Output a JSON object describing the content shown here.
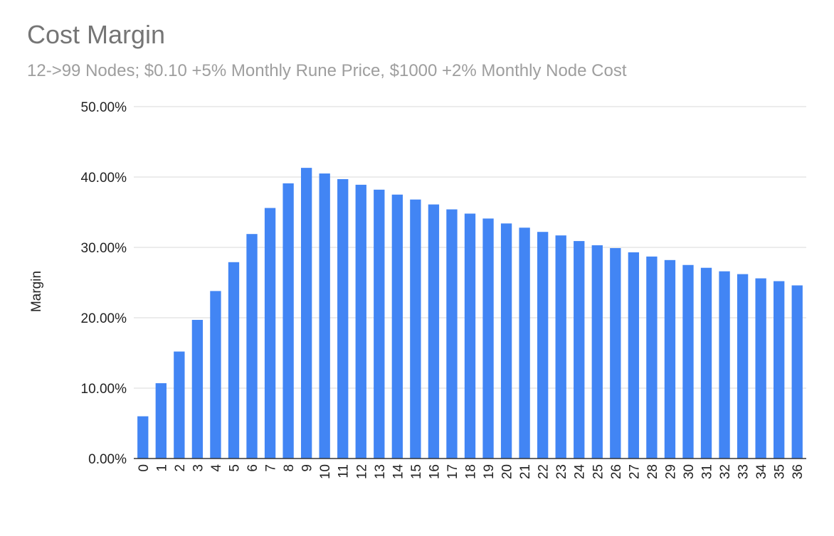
{
  "chart_data": {
    "type": "bar",
    "title": "Cost Margin",
    "subtitle": "12->99 Nodes; $0.10 +5% Monthly Rune Price, $1000 +2% Monthly Node Cost",
    "xlabel": "",
    "ylabel": "Margin",
    "ylim": [
      0,
      0.5
    ],
    "yticks": [
      "0.00%",
      "10.00%",
      "20.00%",
      "30.00%",
      "40.00%",
      "50.00%"
    ],
    "grid": true,
    "bar_color": "#4285f4",
    "categories": [
      "0",
      "1",
      "2",
      "3",
      "4",
      "5",
      "6",
      "7",
      "8",
      "9",
      "10",
      "11",
      "12",
      "13",
      "14",
      "15",
      "16",
      "17",
      "18",
      "19",
      "20",
      "21",
      "22",
      "23",
      "24",
      "25",
      "26",
      "27",
      "28",
      "29",
      "30",
      "31",
      "32",
      "33",
      "34",
      "35",
      "36"
    ],
    "values": [
      0.06,
      0.107,
      0.152,
      0.197,
      0.238,
      0.279,
      0.319,
      0.356,
      0.391,
      0.413,
      0.405,
      0.397,
      0.389,
      0.382,
      0.375,
      0.368,
      0.361,
      0.354,
      0.348,
      0.341,
      0.334,
      0.328,
      0.322,
      0.317,
      0.309,
      0.303,
      0.299,
      0.293,
      0.287,
      0.282,
      0.275,
      0.271,
      0.266,
      0.262,
      0.256,
      0.252,
      0.246
    ]
  }
}
